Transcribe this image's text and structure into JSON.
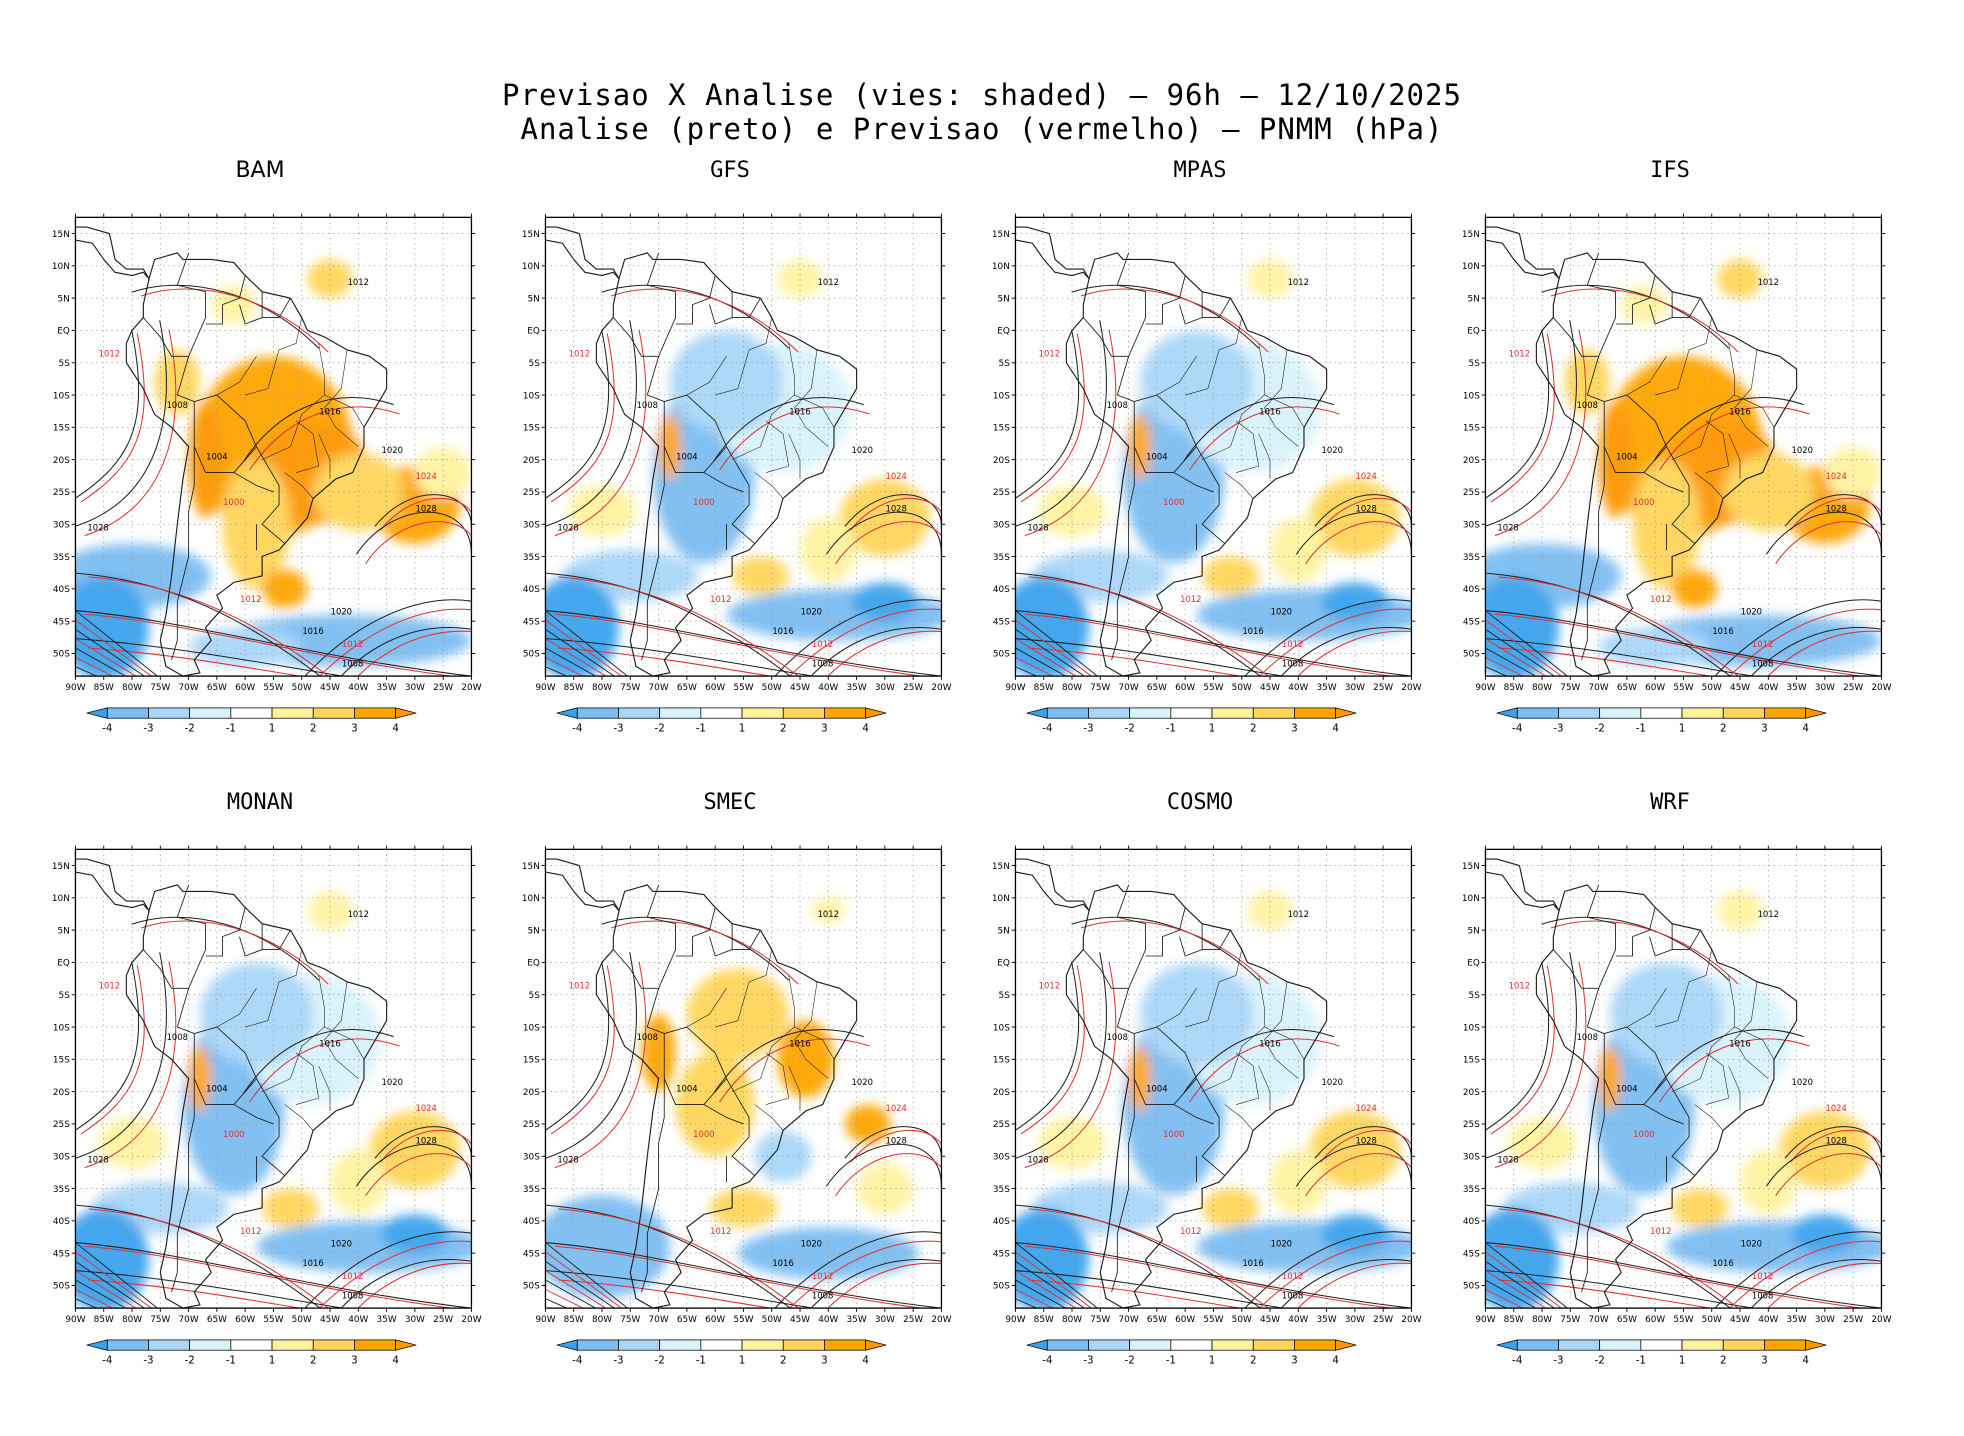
{
  "title": {
    "line1": "Previsao X Analise (vies: shaded) — 96h — 12/10/2025",
    "line2": "Analise (preto) e Previsao (vermelho) — PNMM (hPa)"
  },
  "map": {
    "lat_labels": [
      "15N",
      "10N",
      "5N",
      "EQ",
      "5S",
      "10S",
      "15S",
      "20S",
      "25S",
      "30S",
      "35S",
      "40S",
      "45S",
      "50S"
    ],
    "lon_labels": [
      "90W",
      "85W",
      "80W",
      "75W",
      "70W",
      "65W",
      "60W",
      "55W",
      "50W",
      "45W",
      "40W",
      "35W",
      "30W",
      "25W",
      "20W"
    ]
  },
  "colorbar": {
    "ticks": [
      "-4",
      "-3",
      "-2",
      "-1",
      "1",
      "2",
      "3",
      "4"
    ],
    "colors": [
      "#3aa3ee",
      "#7cbdf2",
      "#a9d6f8",
      "#d9f3fb",
      "#ffffff",
      "#fff3a0",
      "#ffd55a",
      "#ffa500",
      "#ff9600"
    ]
  },
  "colors": {
    "analysis": "#000000",
    "forecast": "#e03030",
    "land_line": "#222222"
  },
  "panels": [
    {
      "name": "BAM",
      "pattern": "warm"
    },
    {
      "name": "GFS",
      "pattern": "cool"
    },
    {
      "name": "MPAS",
      "pattern": "cool"
    },
    {
      "name": "IFS",
      "pattern": "warm"
    },
    {
      "name": "MONAN",
      "pattern": "cool"
    },
    {
      "name": "SMEC",
      "pattern": "mixed"
    },
    {
      "name": "COSMO",
      "pattern": "cool"
    },
    {
      "name": "WRF",
      "pattern": "cool"
    }
  ],
  "contour_labels": [
    {
      "text": "1012",
      "lon": -40,
      "lat": 7
    },
    {
      "text": "1012",
      "lon": -84,
      "lat": -4
    },
    {
      "text": "1008",
      "lon": -72,
      "lat": -12
    },
    {
      "text": "1004",
      "lon": -65,
      "lat": -20
    },
    {
      "text": "1000",
      "lon": -62,
      "lat": -27
    },
    {
      "text": "1016",
      "lon": -45,
      "lat": -13
    },
    {
      "text": "1020",
      "lon": -34,
      "lat": -19
    },
    {
      "text": "1024",
      "lon": -28,
      "lat": -23
    },
    {
      "text": "1028",
      "lon": -28,
      "lat": -28
    },
    {
      "text": "1028",
      "lon": -86,
      "lat": -31
    },
    {
      "text": "1012",
      "lon": -59,
      "lat": -42
    },
    {
      "text": "1020",
      "lon": -43,
      "lat": -44
    },
    {
      "text": "1016",
      "lon": -48,
      "lat": -47
    },
    {
      "text": "1012",
      "lon": -41,
      "lat": -49
    },
    {
      "text": "1008",
      "lon": -41,
      "lat": -52
    }
  ]
}
